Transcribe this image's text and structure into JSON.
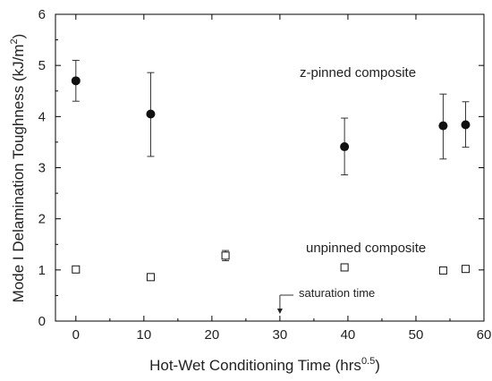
{
  "chart_data": {
    "type": "scatter",
    "xlabel_main": "Hot-Wet Conditioning Time (hrs",
    "xlabel_sup": "0.5",
    "xlabel_end": ")",
    "ylabel_main": "Mode I Delamination Toughness (kJ/m",
    "ylabel_sup": "2",
    "ylabel_end": ")",
    "xlim": [
      -3,
      60
    ],
    "ylim": [
      0,
      6
    ],
    "xticks": [
      0,
      10,
      20,
      30,
      40,
      50,
      60
    ],
    "yticks": [
      0,
      1,
      2,
      3,
      4,
      5,
      6
    ],
    "grid": false,
    "series": [
      {
        "name": "z-pinned composite",
        "marker": "filled-circle",
        "color": "#111111",
        "points": [
          {
            "x": 0,
            "y": 4.7,
            "lo": 4.3,
            "hi": 5.1
          },
          {
            "x": 11,
            "y": 4.05,
            "lo": 3.22,
            "hi": 4.86
          },
          {
            "x": 39.5,
            "y": 3.41,
            "lo": 2.86,
            "hi": 3.97
          },
          {
            "x": 54,
            "y": 3.82,
            "lo": 3.17,
            "hi": 4.44
          },
          {
            "x": 57.3,
            "y": 3.84,
            "lo": 3.4,
            "hi": 4.29
          }
        ]
      },
      {
        "name": "unpinned composite",
        "marker": "open-square",
        "color": "#111111",
        "points": [
          {
            "x": 0,
            "y": 1.01,
            "lo": 1.01,
            "hi": 1.01
          },
          {
            "x": 11,
            "y": 0.86,
            "lo": 0.82,
            "hi": 0.9
          },
          {
            "x": 22,
            "y": 1.28,
            "lo": 1.18,
            "hi": 1.38
          },
          {
            "x": 39.5,
            "y": 1.05,
            "lo": 1.0,
            "hi": 1.1
          },
          {
            "x": 54,
            "y": 0.99,
            "lo": 0.99,
            "hi": 0.99
          },
          {
            "x": 57.3,
            "y": 1.02,
            "lo": 0.97,
            "hi": 1.07
          }
        ]
      }
    ],
    "annotations": {
      "zpinned_label": "z-pinned composite",
      "unpinned_label": "unpinned composite",
      "saturation_label": "saturation time",
      "saturation_x": 30
    }
  }
}
